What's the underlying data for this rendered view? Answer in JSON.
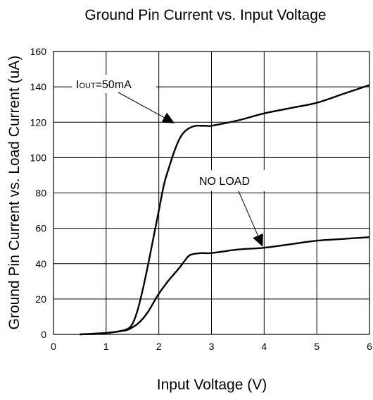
{
  "chart_data": {
    "type": "line",
    "title": "Ground Pin Current vs. Input Voltage",
    "xlabel": "Input Voltage (V)",
    "ylabel": "Ground Pin Current vs. Load Current (uA)",
    "xlim": [
      0,
      6
    ],
    "ylim": [
      0,
      160
    ],
    "x_ticks": [
      "0",
      "1",
      "2",
      "3",
      "4",
      "5",
      "6"
    ],
    "y_ticks": [
      "0",
      "20",
      "40",
      "60",
      "80",
      "100",
      "120",
      "140",
      "160"
    ],
    "grid": true,
    "series": [
      {
        "name": "IOUT=50mA",
        "x": [
          0.5,
          0.8,
          1.0,
          1.2,
          1.4,
          1.5,
          1.6,
          1.7,
          1.8,
          1.9,
          2.0,
          2.1,
          2.2,
          2.3,
          2.4,
          2.5,
          2.6,
          2.7,
          2.8,
          2.9,
          3.0,
          3.5,
          4.0,
          4.5,
          5.0,
          5.5,
          6.0
        ],
        "y": [
          0,
          0.3,
          0.8,
          1.5,
          3,
          6,
          14,
          26,
          40,
          55,
          70,
          85,
          95,
          104,
          111,
          115,
          117,
          118,
          118,
          118,
          118,
          121,
          125,
          128,
          131,
          136,
          141
        ]
      },
      {
        "name": "NO LOAD",
        "x": [
          0.5,
          1.0,
          1.2,
          1.4,
          1.5,
          1.6,
          1.7,
          1.8,
          1.9,
          2.0,
          2.2,
          2.4,
          2.5,
          2.6,
          2.8,
          3.0,
          3.5,
          4.0,
          4.5,
          5.0,
          5.5,
          6.0
        ],
        "y": [
          0,
          0.8,
          1.5,
          2.5,
          4,
          6,
          9,
          13,
          18,
          23,
          31,
          38,
          42,
          45,
          46,
          46,
          48,
          49,
          51,
          53,
          54,
          55
        ]
      }
    ],
    "annotations": [
      {
        "main": "I",
        "sub": "OUT",
        "rest": "=50mA",
        "series": 0,
        "x": 2.3,
        "y": 117
      },
      {
        "text": "NO LOAD",
        "series": 1,
        "x": 4.0,
        "y": 50
      }
    ]
  }
}
